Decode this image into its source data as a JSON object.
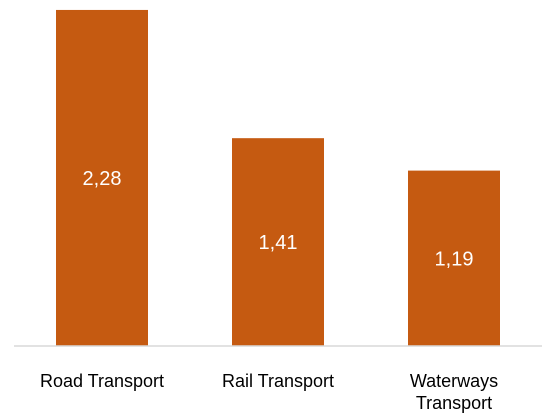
{
  "chart_data": {
    "type": "bar",
    "categories": [
      "Road Transport",
      "Rail Transport",
      "Waterways Transport"
    ],
    "category_label_lines": [
      [
        "Road Transport"
      ],
      [
        "Rail Transport"
      ],
      [
        "Waterways",
        "Transport"
      ]
    ],
    "values": [
      2.28,
      1.41,
      1.19
    ],
    "value_labels": [
      "2,28",
      "1,41",
      "1,19"
    ],
    "ylim": [
      0,
      2.3
    ],
    "grid": false,
    "legend": "none",
    "bar_color": "#c55a11",
    "axis_color": "#d9d9d9"
  }
}
